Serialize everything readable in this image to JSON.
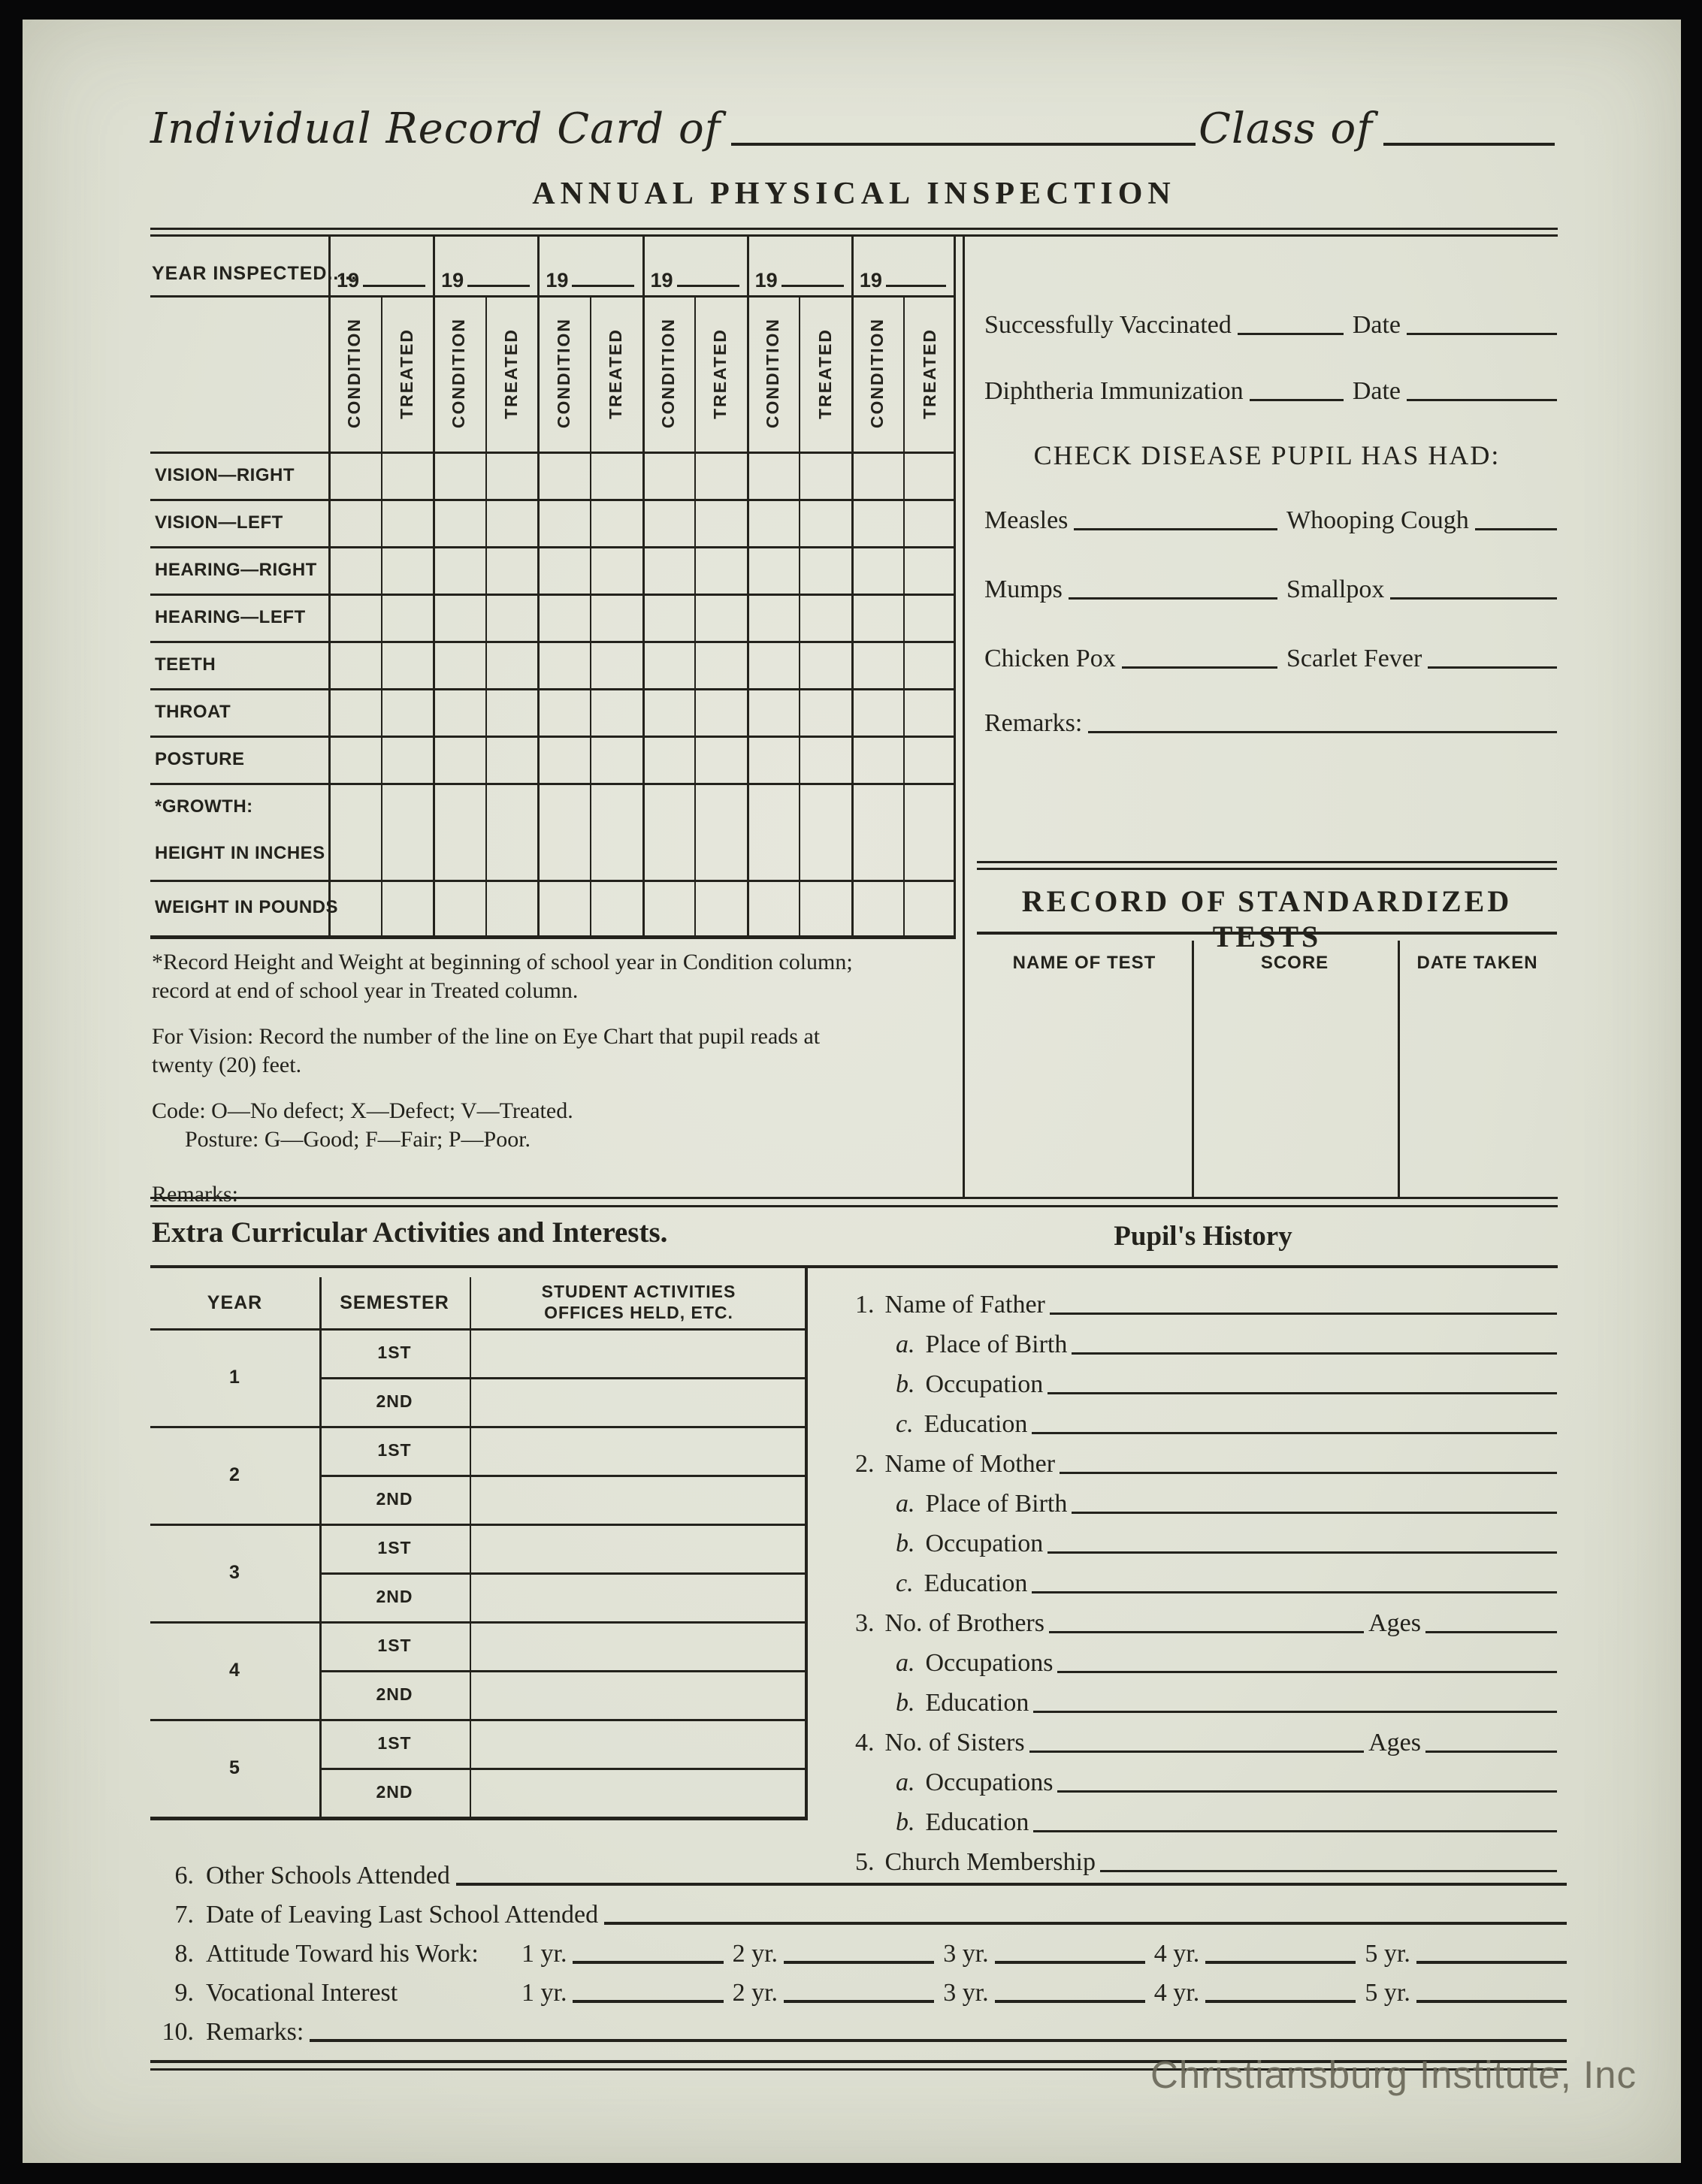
{
  "header": {
    "title": "Individual Record Card of",
    "class_of": "Class of",
    "section_title": "ANNUAL PHYSICAL INSPECTION"
  },
  "inspection": {
    "year_inspected_label": "YEAR INSPECTED.....",
    "year_prefix": "19",
    "year_columns": 6,
    "subheaders": [
      "CONDITION",
      "TREATED"
    ],
    "rows": [
      {
        "label": "VISION—RIGHT"
      },
      {
        "label": "VISION—LEFT"
      },
      {
        "label": "HEARING—RIGHT"
      },
      {
        "label": "HEARING—LEFT"
      },
      {
        "label": "TEETH"
      },
      {
        "label": "THROAT"
      },
      {
        "label": "POSTURE"
      },
      {
        "label": "*GROWTH:",
        "label2": "HEIGHT IN INCHES",
        "tall": true
      },
      {
        "label": "WEIGHT IN POUNDS"
      }
    ],
    "notes": {
      "growth_1": "*Record Height and Weight at beginning of school year in Condition column;",
      "growth_2": "record at end of school year in Treated column.",
      "vision_1": "For Vision:  Record the number of the line on Eye Chart that pupil reads at",
      "vision_2": "twenty (20) feet.",
      "code": "Code:  O—No defect; X—Defect; V—Treated.",
      "posture": "Posture:  G—Good; F—Fair; P—Poor.",
      "remarks": "Remarks:"
    }
  },
  "vaccination": {
    "lines": [
      {
        "label": "Successfully Vaccinated",
        "date_label": "Date"
      },
      {
        "label": "Diphtheria Immunization",
        "date_label": "Date"
      }
    ],
    "disease_heading": "CHECK DISEASE PUPIL HAS HAD:",
    "disease_rows": [
      {
        "left": "Measles",
        "right": "Whooping Cough"
      },
      {
        "left": "Mumps",
        "right": "Smallpox"
      },
      {
        "left": "Chicken Pox",
        "right": "Scarlet Fever"
      }
    ],
    "remarks_label": "Remarks:"
  },
  "tests": {
    "title": "RECORD OF STANDARDIZED TESTS",
    "columns": [
      "NAME OF TEST",
      "SCORE",
      "DATE TAKEN"
    ]
  },
  "activities": {
    "title": "Extra Curricular Activities and Interests.",
    "columns": [
      "YEAR",
      "SEMESTER",
      "STUDENT ACTIVITIES",
      "OFFICES HELD, ETC."
    ],
    "years": [
      "1",
      "2",
      "3",
      "4",
      "5"
    ],
    "semesters": [
      "1ST",
      "2ND"
    ]
  },
  "history": {
    "title": "Pupil's History",
    "items": [
      {
        "num": "1.",
        "label": "Name of Father",
        "indent": 0
      },
      {
        "num": "a.",
        "label": "Place of Birth",
        "indent": 1
      },
      {
        "num": "b.",
        "label": "Occupation",
        "indent": 1
      },
      {
        "num": "c.",
        "label": "Education",
        "indent": 1
      },
      {
        "num": "2.",
        "label": "Name of Mother",
        "indent": 0
      },
      {
        "num": "a.",
        "label": "Place of Birth",
        "indent": 1
      },
      {
        "num": "b.",
        "label": "Occupation",
        "indent": 1
      },
      {
        "num": "c.",
        "label": "Education",
        "indent": 1
      },
      {
        "num": "3.",
        "label": "No. of Brothers",
        "indent": 0,
        "suffix": "Ages"
      },
      {
        "num": "a.",
        "label": "Occupations",
        "indent": 1
      },
      {
        "num": "b.",
        "label": "Education",
        "indent": 1
      },
      {
        "num": "4.",
        "label": "No. of Sisters",
        "indent": 0,
        "suffix": "Ages"
      },
      {
        "num": "a.",
        "label": "Occupations",
        "indent": 1
      },
      {
        "num": "b.",
        "label": "Education",
        "indent": 1
      },
      {
        "num": "5.",
        "label": "Church Membership",
        "indent": 0
      }
    ]
  },
  "bottom": {
    "items": [
      {
        "num": "6.",
        "label": "Other Schools Attended",
        "type": "line"
      },
      {
        "num": "7.",
        "label": "Date of Leaving Last School Attended",
        "type": "line"
      },
      {
        "num": "8.",
        "label": "Attitude Toward his Work:",
        "type": "years"
      },
      {
        "num": "9.",
        "label": "Vocational Interest",
        "type": "years"
      },
      {
        "num": "10.",
        "label": "Remarks:",
        "type": "line"
      }
    ],
    "year_labels": [
      "1 yr.",
      "2 yr.",
      "3 yr.",
      "4 yr.",
      "5 yr."
    ]
  },
  "watermark": "Christiansburg Institute, Inc",
  "colors": {
    "ink": "#23221c",
    "paper": "#e0e2d5",
    "watermark": "#6b695a"
  }
}
